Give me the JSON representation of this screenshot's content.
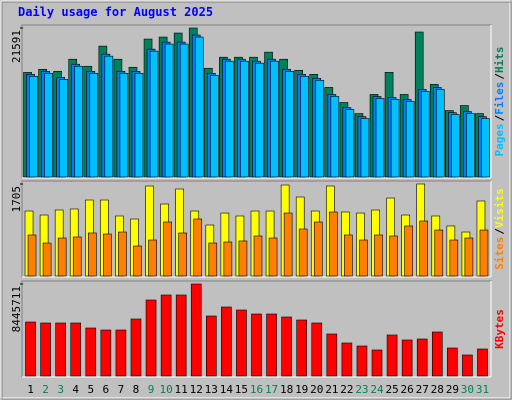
{
  "chart_data": [
    {
      "type": "bar",
      "title": "Daily usage for August 2025",
      "categories": [
        "1",
        "2",
        "3",
        "4",
        "5",
        "6",
        "7",
        "8",
        "9",
        "10",
        "11",
        "12",
        "13",
        "14",
        "15",
        "16",
        "17",
        "18",
        "19",
        "20",
        "21",
        "22",
        "23",
        "24",
        "25",
        "26",
        "27",
        "28",
        "29",
        "30",
        "31"
      ],
      "category_colors": [
        "#000000",
        "#00805c",
        "#00805c",
        "#000000",
        "#000000",
        "#000000",
        "#000000",
        "#000000",
        "#00805c",
        "#00805c",
        "#000000",
        "#000000",
        "#000000",
        "#000000",
        "#000000",
        "#00805c",
        "#00805c",
        "#000000",
        "#000000",
        "#000000",
        "#000000",
        "#000000",
        "#00805c",
        "#00805c",
        "#000000",
        "#000000",
        "#000000",
        "#000000",
        "#000000",
        "#00805c",
        "#00805c"
      ],
      "legend_separator": "/",
      "ylim": [
        0,
        21591
      ],
      "yticks": [
        21591
      ],
      "series": [
        {
          "name": "Hits",
          "color": "#00805c",
          "values": [
            15172,
            15611,
            15319,
            17069,
            16048,
            18966,
            17069,
            15902,
            19987,
            20279,
            20862,
            21591,
            15756,
            17361,
            17361,
            17361,
            18090,
            17069,
            15465,
            14881,
            12984,
            10796,
            9191,
            11963,
            15172,
            11963,
            21008,
            13422,
            9629,
            10358,
            9191
          ]
        },
        {
          "name": "Files",
          "color": "#0080ff",
          "values": [
            14882,
            15320,
            14444,
            16341,
            15320,
            17800,
            15320,
            15320,
            18529,
            19551,
            19551,
            20572,
            15028,
            17070,
            17070,
            16779,
            17070,
            15611,
            14882,
            14298,
            11964,
            10067,
            8754,
            11672,
            11526,
            11234,
            12693,
            12985,
            9338,
            9484,
            8754
          ]
        },
        {
          "name": "Pages",
          "color": "#00c0ff",
          "values": [
            14590,
            15030,
            14150,
            16050,
            15030,
            17510,
            15030,
            15030,
            18240,
            19260,
            19260,
            20280,
            14740,
            16780,
            16780,
            16490,
            16780,
            15320,
            14590,
            14010,
            11670,
            9780,
            8460,
            11380,
            11230,
            10940,
            12400,
            12690,
            9050,
            9190,
            8460
          ]
        }
      ]
    },
    {
      "type": "bar",
      "legend_separator": "/",
      "ylim": [
        0,
        1705
      ],
      "yticks": [
        1705
      ],
      "series": [
        {
          "name": "Visits",
          "color": "#ffff00",
          "values": [
            1204,
            1130,
            1223,
            1242,
            1408,
            1408,
            1112,
            1056,
            1668,
            1334,
            1612,
            1204,
            945,
            1167,
            1112,
            1204,
            1204,
            1686,
            1464,
            1204,
            1668,
            1186,
            1167,
            1223,
            1445,
            1130,
            1705,
            1112,
            927,
            815,
            1390
          ]
        },
        {
          "name": "Sites",
          "color": "#ff8000",
          "values": [
            760,
            611,
            704,
            723,
            797,
            778,
            815,
            556,
            667,
            1001,
            797,
            1056,
            611,
            630,
            649,
            741,
            704,
            1167,
            871,
            1001,
            1186,
            760,
            667,
            760,
            741,
            927,
            1019,
            852,
            667,
            704,
            852
          ]
        }
      ]
    },
    {
      "type": "bar",
      "ylim": [
        0,
        8445711
      ],
      "yticks": [
        8445711
      ],
      "series": [
        {
          "name": "KBytes",
          "color": "#ff0000",
          "values": [
            4957254,
            4865453,
            4865453,
            4865453,
            4406448,
            4222846,
            4222846,
            5232657,
            6976876,
            7435881,
            7435881,
            8445711,
            5508060,
            6334269,
            6058866,
            5691662,
            5691662,
            5416259,
            5140856,
            4865453,
            3855642,
            3029433,
            2754030,
            2386826,
            3763841,
            3304836,
            3396637,
            4039244,
            2570428,
            1927821,
            2478627
          ]
        }
      ]
    }
  ]
}
